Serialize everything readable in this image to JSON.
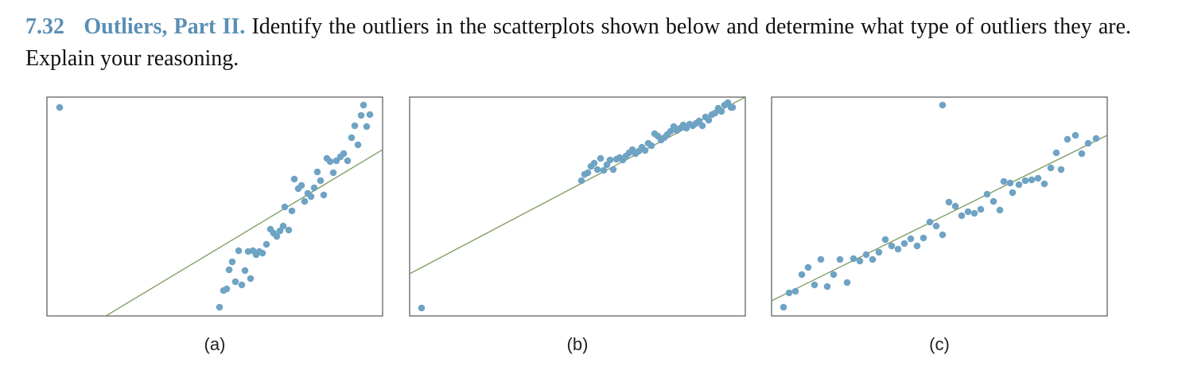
{
  "problem": {
    "number": "7.32",
    "title": "Outliers, Part II.",
    "text": "Identify the outliers in the scatterplots shown below and determine what type of outliers they are. Explain your reasoning."
  },
  "chart_data": [
    {
      "type": "scatter",
      "caption": "(a)",
      "xlim": [
        0,
        422
      ],
      "ylim": [
        0,
        275
      ],
      "color": "#6fa3c4",
      "line_color": "#7a9a5f",
      "line": {
        "x": [
          74,
          422
        ],
        "y": [
          0,
          209
        ]
      },
      "x": [
        16,
        217,
        222,
        226,
        229,
        233,
        237,
        241,
        245,
        249,
        253,
        256,
        259,
        263,
        267,
        271,
        276,
        281,
        285,
        289,
        293,
        297,
        304,
        299,
        308,
        311,
        316,
        320,
        324,
        328,
        332,
        336,
        340,
        344,
        348,
        352,
        356,
        360,
        364,
        369,
        373,
        378,
        383,
        387,
        391,
        395,
        398,
        402,
        406
      ],
      "values": [
        262,
        11,
        32,
        34,
        58,
        68,
        43,
        82,
        39,
        57,
        81,
        47,
        82,
        77,
        81,
        79,
        90,
        109,
        104,
        100,
        107,
        113,
        108,
        137,
        132,
        172,
        160,
        164,
        144,
        154,
        150,
        161,
        181,
        170,
        152,
        198,
        194,
        180,
        195,
        200,
        204,
        195,
        224,
        239,
        215,
        252,
        265,
        238,
        253
      ]
    },
    {
      "type": "scatter",
      "caption": "(b)",
      "xlim": [
        0,
        422
      ],
      "ylim": [
        0,
        275
      ],
      "color": "#6fa3c4",
      "line_color": "#7a9a5f",
      "line": {
        "x": [
          0,
          422
        ],
        "y": [
          53,
          275
        ]
      },
      "x": [
        15,
        216,
        220,
        224,
        228,
        232,
        236,
        240,
        244,
        248,
        252,
        256,
        260,
        264,
        268,
        272,
        276,
        280,
        284,
        288,
        292,
        296,
        300,
        304,
        308,
        312,
        316,
        320,
        324,
        328,
        332,
        336,
        340,
        344,
        348,
        352,
        356,
        360,
        364,
        368,
        372,
        376,
        380,
        384,
        388,
        392,
        396,
        400,
        404,
        406
      ],
      "values": [
        10,
        170,
        178,
        180,
        188,
        192,
        184,
        198,
        183,
        190,
        196,
        184,
        197,
        199,
        196,
        201,
        205,
        209,
        204,
        207,
        212,
        208,
        217,
        214,
        229,
        226,
        221,
        224,
        228,
        232,
        238,
        233,
        236,
        240,
        236,
        241,
        239,
        242,
        245,
        239,
        250,
        246,
        253,
        255,
        261,
        257,
        265,
        268,
        262,
        262
      ]
    },
    {
      "type": "scatter",
      "caption": "(c)",
      "xlim": [
        0,
        422
      ],
      "ylim": [
        0,
        275
      ],
      "color": "#6fa3c4",
      "line_color": "#7a9a5f",
      "line": {
        "x": [
          0,
          422
        ],
        "y": [
          19,
          227
        ]
      },
      "x": [
        215,
        15,
        22,
        30,
        38,
        46,
        54,
        62,
        70,
        78,
        86,
        95,
        103,
        111,
        119,
        127,
        135,
        143,
        151,
        159,
        167,
        175,
        183,
        191,
        199,
        207,
        215,
        223,
        231,
        239,
        247,
        255,
        263,
        271,
        279,
        287,
        292,
        300,
        303,
        311,
        319,
        327,
        335,
        343,
        351,
        358,
        364,
        372,
        382,
        390,
        398,
        408
      ],
      "values": [
        265,
        11,
        29,
        31,
        52,
        61,
        39,
        71,
        37,
        52,
        71,
        42,
        72,
        69,
        77,
        71,
        80,
        96,
        88,
        84,
        91,
        97,
        88,
        98,
        118,
        113,
        102,
        143,
        138,
        126,
        131,
        129,
        134,
        153,
        144,
        133,
        169,
        167,
        155,
        165,
        170,
        171,
        173,
        166,
        186,
        205,
        184,
        222,
        227,
        204,
        217,
        223
      ]
    }
  ]
}
